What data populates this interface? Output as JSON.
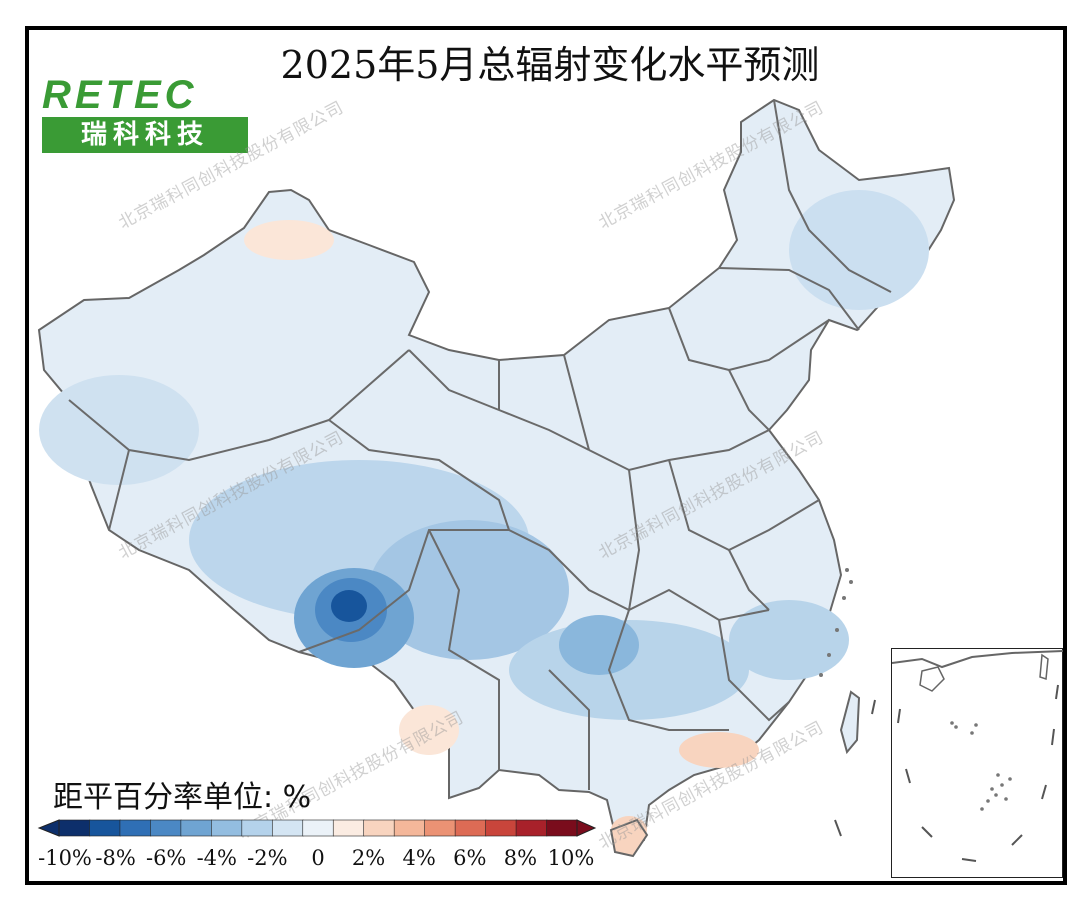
{
  "title": "2025年5月总辐射变化水平预测",
  "logo": {
    "word": "RETEC",
    "subtitle": "瑞科科技"
  },
  "watermark": "北京瑞科同创科技股份有限公司",
  "legend": {
    "unit_label": "距平百分率单位: %",
    "ticks": [
      "-10%",
      "-8%",
      "-6%",
      "-4%",
      "-2%",
      "0",
      "2%",
      "4%",
      "6%",
      "8%",
      "10%"
    ],
    "colors": [
      "#0d2f6b",
      "#17559c",
      "#2f6fb5",
      "#4b88c4",
      "#6fa4d2",
      "#93bde0",
      "#b4d2eb",
      "#d4e5f3",
      "#ebf2f8",
      "#fbece2",
      "#f8d4bf",
      "#f4b79a",
      "#eb9274",
      "#dd6b55",
      "#c9453b",
      "#a8212a",
      "#7a0c1c"
    ]
  },
  "colors": {
    "border": "#666666",
    "frame": "#000000",
    "logo_green": "#3a9b35"
  }
}
